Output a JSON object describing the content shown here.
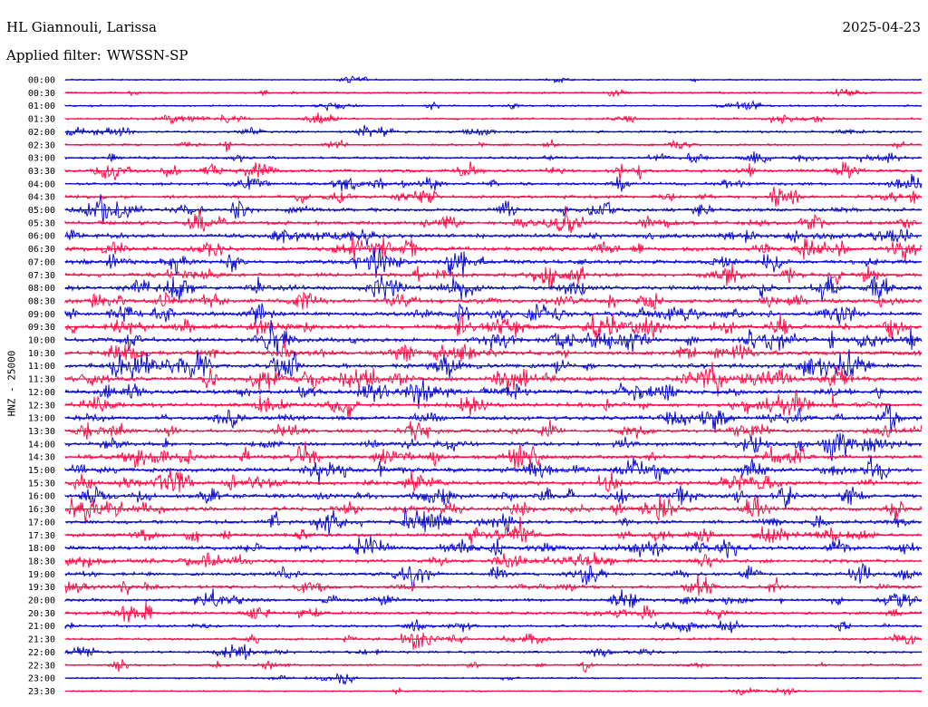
{
  "header": {
    "station": "HL Giannouli, Larissa",
    "date": "2025-04-23",
    "filter_label": "Applied filter:",
    "filter_value": "WWSSN-SP"
  },
  "chart_data": {
    "type": "line",
    "title": "HL Giannouli, Larissa",
    "ylabel": "HNZ - 25000",
    "filter": "WWSSN-SP",
    "date": "2025-04-23",
    "row_labels": [
      "00:00",
      "00:30",
      "01:00",
      "01:30",
      "02:00",
      "02:30",
      "03:00",
      "03:30",
      "04:00",
      "04:30",
      "05:00",
      "05:30",
      "06:00",
      "06:30",
      "07:00",
      "07:30",
      "08:00",
      "08:30",
      "09:00",
      "09:30",
      "10:00",
      "10:30",
      "11:00",
      "11:30",
      "12:00",
      "12:30",
      "13:00",
      "13:30",
      "14:00",
      "14:30",
      "15:00",
      "15:30",
      "16:00",
      "16:30",
      "17:00",
      "17:30",
      "18:00",
      "18:30",
      "19:00",
      "19:30",
      "20:00",
      "20:30",
      "21:00",
      "21:30",
      "22:00",
      "22:30",
      "23:00",
      "23:30"
    ],
    "row_colors": [
      "#0000cc",
      "#ff0040"
    ],
    "activity": [
      0.05,
      0.15,
      0.15,
      0.22,
      0.28,
      0.22,
      0.35,
      0.45,
      0.45,
      0.5,
      0.55,
      0.65,
      0.7,
      0.7,
      0.65,
      0.6,
      0.7,
      0.7,
      0.75,
      0.8,
      0.75,
      0.75,
      0.8,
      0.8,
      0.75,
      0.7,
      0.7,
      0.6,
      0.65,
      0.7,
      0.7,
      0.75,
      0.75,
      0.7,
      0.6,
      0.6,
      0.6,
      0.55,
      0.5,
      0.5,
      0.45,
      0.45,
      0.35,
      0.3,
      0.25,
      0.25,
      0.12,
      0.06
    ],
    "grid": false,
    "legend": "none"
  }
}
